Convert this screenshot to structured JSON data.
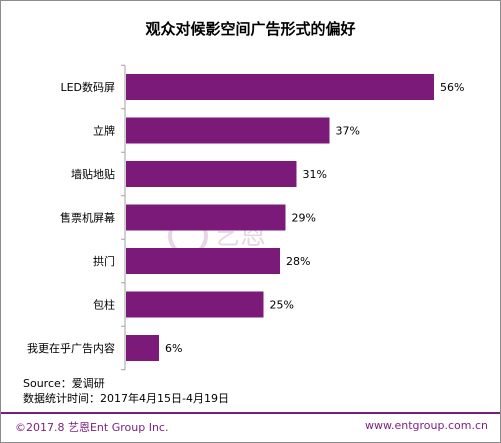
{
  "chart_data": {
    "type": "bar",
    "orientation": "horizontal",
    "title": "观众对候影空间广告形式的偏好",
    "categories": [
      "LED数码屏",
      "立牌",
      "墙贴地贴",
      "售票机屏幕",
      "拱门",
      "包柱",
      "我更在乎广告内容"
    ],
    "values": [
      56,
      37,
      31,
      29,
      28,
      25,
      6
    ],
    "value_labels": [
      "56%",
      "37%",
      "31%",
      "29%",
      "28%",
      "25%",
      "6%"
    ],
    "unit": "%",
    "xlim": [
      0,
      56
    ],
    "grid": false,
    "bar_color": "#7b1a78"
  },
  "source": {
    "line1": "Source：爱调研",
    "line2": "数据统计时间：2017年4月15日-4月19日"
  },
  "footer": {
    "copyright": "©2017.8 艺恩Ent Group Inc.",
    "website": "www.entgroup.com.cn"
  },
  "watermark": {
    "text": "艺恩",
    "subtext": "entgroup"
  },
  "colors": {
    "accent": "#7b1f7f"
  }
}
